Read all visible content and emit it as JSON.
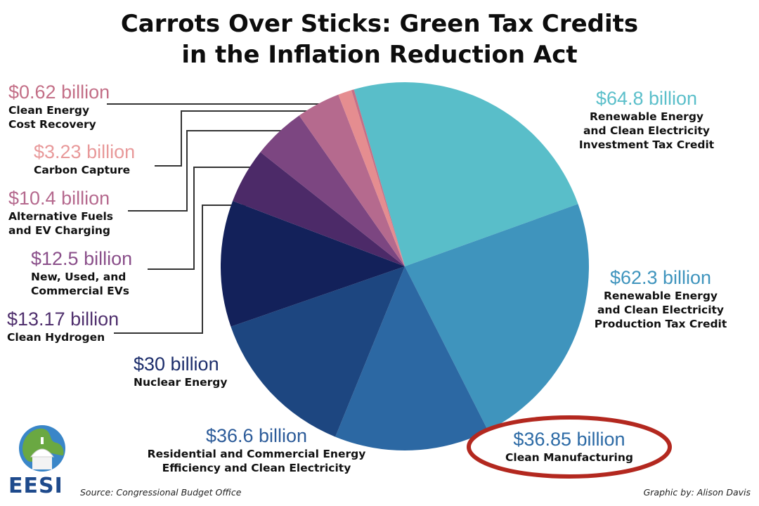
{
  "title": {
    "line1": "Carrots Over Sticks: Green Tax Credits",
    "line2": "in the Inflation Reduction Act"
  },
  "chart_data": {
    "type": "pie",
    "title": "Carrots Over Sticks: Green Tax Credits in the Inflation Reduction Act",
    "unit": "billion USD",
    "slices": [
      {
        "id": "ITC",
        "value": 64.8,
        "value_label": "$64.8 billion",
        "label": "Renewable Energy\nand Clean Electricity\nInvestment Tax Credit",
        "color": "#59bec9",
        "label_color": "#5bbfca"
      },
      {
        "id": "PTC",
        "value": 62.3,
        "value_label": "$62.3 billion",
        "label": "Renewable Energy\nand Clean Electricity\nProduction Tax Credit",
        "color": "#3f94bd",
        "label_color": "#3f94bd"
      },
      {
        "id": "manufacturing",
        "value": 36.85,
        "value_label": "$36.85 billion",
        "label": "Clean Manufacturing",
        "color": "#2c68a3",
        "label_color": "#2c6aa5",
        "highlighted": true
      },
      {
        "id": "efficiency",
        "value": 36.6,
        "value_label": "$36.6 billion",
        "label": "Residential and Commercial Energy\nEfficiency and Clean Electricity",
        "color": "#1d4680",
        "label_color": "#2c5b99"
      },
      {
        "id": "nuclear",
        "value": 30,
        "value_label": "$30 billion",
        "label": "Nuclear Energy",
        "color": "#13215a",
        "label_color": "#1c2d6b"
      },
      {
        "id": "hydrogen",
        "value": 13.17,
        "value_label": "$13.17 billion",
        "label": "Clean Hydrogen",
        "color": "#4c2a68",
        "label_color": "#4f2f6d"
      },
      {
        "id": "evs",
        "value": 12.5,
        "value_label": "$12.5 billion",
        "label": "New, Used, and\nCommercial EVs",
        "color": "#7c4681",
        "label_color": "#8a4f8a"
      },
      {
        "id": "fuels",
        "value": 10.4,
        "value_label": "$10.4 billion",
        "label": "Alternative Fuels\nand EV Charging",
        "color": "#b56a8e",
        "label_color": "#b5698e"
      },
      {
        "id": "carbon",
        "value": 3.23,
        "value_label": "$3.23 billion",
        "label": "Carbon Capture",
        "color": "#e58d90",
        "label_color": "#e8999a"
      },
      {
        "id": "cost_recovery",
        "value": 0.62,
        "value_label": "$0.62 billion",
        "label": "Clean Energy\nCost Recovery",
        "color": "#c66f86",
        "label_color": "#c36f87"
      }
    ],
    "highlight_color": "#b3281f"
  },
  "footer": {
    "source": "Source: Congressional Budget Office",
    "credit": "Graphic by: Alison Davis"
  },
  "logo": {
    "text": "EESI",
    "globe_color": "#3a86c8",
    "land_color": "#6aa842"
  }
}
